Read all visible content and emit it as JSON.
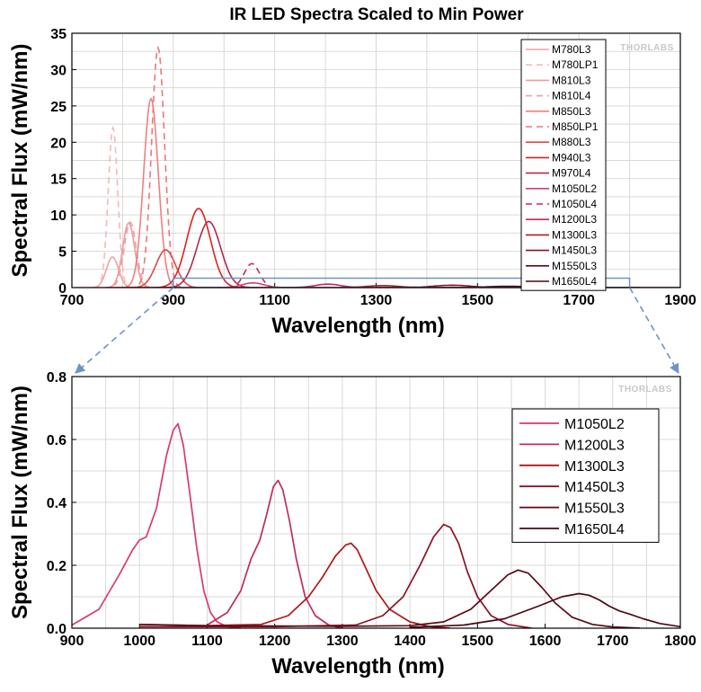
{
  "chart_data": [
    {
      "type": "line",
      "title": "IR LED Spectra Scaled to Min Power",
      "xlabel": "Wavelength (nm)",
      "ylabel": "Spectral Flux (mW/nm)",
      "xlim": [
        700,
        1900
      ],
      "ylim": [
        0,
        35
      ],
      "x_ticks": [
        700,
        900,
        1100,
        1300,
        1500,
        1700,
        1900
      ],
      "y_ticks": [
        0,
        5,
        10,
        15,
        20,
        25,
        30,
        35
      ],
      "grid": true,
      "legend_position": "top-right",
      "watermark": "THORLABS",
      "series": [
        {
          "name": "M780L3",
          "color": "#f4a0a0",
          "dash": false,
          "peak_wavelength": 780,
          "peak_value": 4.2,
          "fwhm": 28
        },
        {
          "name": "M780LP1",
          "color": "#f7b8b8",
          "dash": true,
          "peak_wavelength": 781,
          "peak_value": 22.0,
          "fwhm": 22
        },
        {
          "name": "M810L3",
          "color": "#f29a9a",
          "dash": false,
          "peak_wavelength": 812,
          "peak_value": 8.9,
          "fwhm": 28
        },
        {
          "name": "M810L4",
          "color": "#f0a0a0",
          "dash": true,
          "peak_wavelength": 815,
          "peak_value": 9.0,
          "fwhm": 28
        },
        {
          "name": "M850L3",
          "color": "#ee8080",
          "dash": false,
          "peak_wavelength": 856,
          "peak_value": 26.0,
          "fwhm": 34
        },
        {
          "name": "M850LP1",
          "color": "#ee7777",
          "dash": true,
          "peak_wavelength": 870,
          "peak_value": 33.0,
          "fwhm": 30
        },
        {
          "name": "M880L3",
          "color": "#e04848",
          "dash": false,
          "peak_wavelength": 885,
          "peak_value": 5.2,
          "fwhm": 45
        },
        {
          "name": "M940L3",
          "color": "#dd2222",
          "dash": false,
          "peak_wavelength": 950,
          "peak_value": 10.9,
          "fwhm": 55
        },
        {
          "name": "M970L4",
          "color": "#b02a4a",
          "dash": false,
          "peak_wavelength": 970,
          "peak_value": 9.1,
          "fwhm": 55
        },
        {
          "name": "M1050L2",
          "color": "#d63a6e",
          "dash": false,
          "peak_wavelength": 1057,
          "peak_value": 0.65,
          "fwhm": 50
        },
        {
          "name": "M1050L4",
          "color": "#c8285e",
          "dash": true,
          "peak_wavelength": 1055,
          "peak_value": 3.3,
          "fwhm": 35
        },
        {
          "name": "M1200L3",
          "color": "#c02c5c",
          "dash": false,
          "peak_wavelength": 1205,
          "peak_value": 0.47,
          "fwhm": 60
        },
        {
          "name": "M1300L3",
          "color": "#b21818",
          "dash": false,
          "peak_wavelength": 1313,
          "peak_value": 0.27,
          "fwhm": 75
        },
        {
          "name": "M1450L3",
          "color": "#8a1224",
          "dash": false,
          "peak_wavelength": 1450,
          "peak_value": 0.33,
          "fwhm": 85
        },
        {
          "name": "M1550L3",
          "color": "#5c0a14",
          "dash": false,
          "peak_wavelength": 1560,
          "peak_value": 0.18,
          "fwhm": 100
        },
        {
          "name": "M1650L4",
          "color": "#4a0a12",
          "dash": false,
          "peak_wavelength": 1650,
          "peak_value": 0.11,
          "fwhm": 110
        }
      ],
      "zoom_box": {
        "x": [
          900,
          1800
        ],
        "y": [
          0,
          0.8
        ]
      }
    },
    {
      "type": "line",
      "title": "",
      "xlabel": "Wavelength (nm)",
      "ylabel": "Spectral Flux (mW/nm)",
      "xlim": [
        900,
        1800
      ],
      "ylim": [
        0,
        0.8
      ],
      "x_ticks": [
        900,
        1000,
        1100,
        1200,
        1300,
        1400,
        1500,
        1600,
        1700,
        1800
      ],
      "y_ticks": [
        0.0,
        0.2,
        0.4,
        0.6,
        0.8
      ],
      "y_tick_labels": [
        "0.0",
        "0.2",
        "0.4",
        "0.6",
        "0.8"
      ],
      "grid": true,
      "legend_position": "top-right",
      "watermark": "THORLABS",
      "series": [
        {
          "name": "M1050L2",
          "color": "#d63a6e",
          "points": [
            [
              900,
              0.01
            ],
            [
              940,
              0.06
            ],
            [
              970,
              0.17
            ],
            [
              990,
              0.25
            ],
            [
              1000,
              0.28
            ],
            [
              1010,
              0.29
            ],
            [
              1025,
              0.38
            ],
            [
              1040,
              0.55
            ],
            [
              1050,
              0.63
            ],
            [
              1057,
              0.65
            ],
            [
              1065,
              0.58
            ],
            [
              1075,
              0.42
            ],
            [
              1085,
              0.25
            ],
            [
              1095,
              0.12
            ],
            [
              1105,
              0.05
            ],
            [
              1115,
              0.02
            ],
            [
              1130,
              0.005
            ],
            [
              1150,
              0.0
            ]
          ]
        },
        {
          "name": "M1200L3",
          "color": "#c02c5c",
          "points": [
            [
              1100,
              0.01
            ],
            [
              1130,
              0.05
            ],
            [
              1150,
              0.12
            ],
            [
              1165,
              0.22
            ],
            [
              1178,
              0.28
            ],
            [
              1188,
              0.36
            ],
            [
              1198,
              0.45
            ],
            [
              1205,
              0.47
            ],
            [
              1212,
              0.44
            ],
            [
              1222,
              0.34
            ],
            [
              1232,
              0.22
            ],
            [
              1245,
              0.1
            ],
            [
              1260,
              0.04
            ],
            [
              1280,
              0.01
            ],
            [
              1300,
              0.0
            ]
          ]
        },
        {
          "name": "M1300L3",
          "color": "#b21818",
          "points": [
            [
              1000,
              0.012
            ],
            [
              1100,
              0.008
            ],
            [
              1180,
              0.012
            ],
            [
              1220,
              0.04
            ],
            [
              1250,
              0.1
            ],
            [
              1270,
              0.16
            ],
            [
              1290,
              0.23
            ],
            [
              1305,
              0.265
            ],
            [
              1313,
              0.27
            ],
            [
              1322,
              0.25
            ],
            [
              1335,
              0.19
            ],
            [
              1350,
              0.12
            ],
            [
              1370,
              0.06
            ],
            [
              1400,
              0.02
            ],
            [
              1430,
              0.005
            ],
            [
              1460,
              0.0
            ]
          ]
        },
        {
          "name": "M1450L3",
          "color": "#8a1224",
          "points": [
            [
              1000,
              0.005
            ],
            [
              1200,
              0.005
            ],
            [
              1320,
              0.01
            ],
            [
              1360,
              0.04
            ],
            [
              1390,
              0.1
            ],
            [
              1415,
              0.2
            ],
            [
              1435,
              0.29
            ],
            [
              1450,
              0.33
            ],
            [
              1460,
              0.32
            ],
            [
              1472,
              0.27
            ],
            [
              1485,
              0.18
            ],
            [
              1500,
              0.1
            ],
            [
              1520,
              0.04
            ],
            [
              1545,
              0.012
            ],
            [
              1580,
              0.0
            ]
          ]
        },
        {
          "name": "M1550L3",
          "color": "#5c0a14",
          "points": [
            [
              1000,
              0.012
            ],
            [
              1100,
              0.008
            ],
            [
              1300,
              0.006
            ],
            [
              1400,
              0.008
            ],
            [
              1450,
              0.02
            ],
            [
              1490,
              0.06
            ],
            [
              1520,
              0.12
            ],
            [
              1545,
              0.17
            ],
            [
              1560,
              0.185
            ],
            [
              1575,
              0.175
            ],
            [
              1595,
              0.13
            ],
            [
              1615,
              0.08
            ],
            [
              1640,
              0.035
            ],
            [
              1670,
              0.012
            ],
            [
              1700,
              0.004
            ],
            [
              1740,
              0.0
            ]
          ]
        },
        {
          "name": "M1650L4",
          "color": "#4a0a12",
          "points": [
            [
              1400,
              0.003
            ],
            [
              1480,
              0.01
            ],
            [
              1540,
              0.03
            ],
            [
              1590,
              0.07
            ],
            [
              1625,
              0.1
            ],
            [
              1650,
              0.11
            ],
            [
              1665,
              0.105
            ],
            [
              1680,
              0.09
            ],
            [
              1695,
              0.07
            ],
            [
              1710,
              0.055
            ],
            [
              1725,
              0.045
            ],
            [
              1745,
              0.03
            ],
            [
              1770,
              0.015
            ],
            [
              1800,
              0.005
            ]
          ]
        }
      ]
    }
  ]
}
